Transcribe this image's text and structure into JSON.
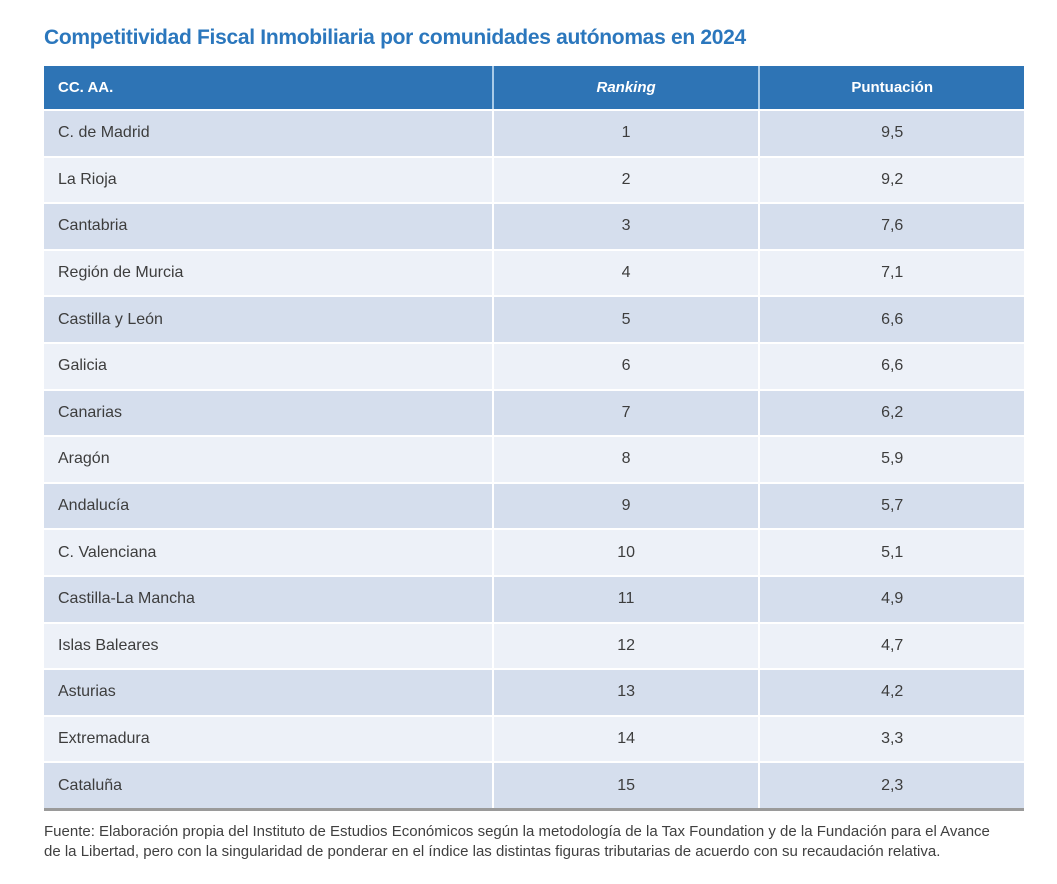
{
  "title": "Competitividad Fiscal Inmobiliaria por comunidades autónomas en 2024",
  "table": {
    "columns": [
      "CC. AA.",
      "Ranking",
      "Puntuación"
    ],
    "rows": [
      {
        "name": "C. de Madrid",
        "ranking": "1",
        "score": "9,5"
      },
      {
        "name": "La Rioja",
        "ranking": "2",
        "score": "9,2"
      },
      {
        "name": "Cantabria",
        "ranking": "3",
        "score": "7,6"
      },
      {
        "name": "Región de Murcia",
        "ranking": "4",
        "score": "7,1"
      },
      {
        "name": "Castilla y León",
        "ranking": "5",
        "score": "6,6"
      },
      {
        "name": "Galicia",
        "ranking": "6",
        "score": "6,6"
      },
      {
        "name": "Canarias",
        "ranking": "7",
        "score": "6,2"
      },
      {
        "name": "Aragón",
        "ranking": "8",
        "score": "5,9"
      },
      {
        "name": "Andalucía",
        "ranking": "9",
        "score": "5,7"
      },
      {
        "name": "C. Valenciana",
        "ranking": "10",
        "score": "5,1"
      },
      {
        "name": "Castilla-La Mancha",
        "ranking": "11",
        "score": "4,9"
      },
      {
        "name": "Islas Baleares",
        "ranking": "12",
        "score": "4,7"
      },
      {
        "name": "Asturias",
        "ranking": "13",
        "score": "4,2"
      },
      {
        "name": "Extremadura",
        "ranking": "14",
        "score": "3,3"
      },
      {
        "name": "Cataluña",
        "ranking": "15",
        "score": "2,3"
      }
    ]
  },
  "footnote": "Fuente: Elaboración propia del Instituto de Estudios Económicos según la metodología de la Tax Foundation y de la Fundación para el Avance de la Libertad, pero con la singularidad de ponderar en el índice las distintas figuras tributarias de acuerdo con su recaudación relativa.",
  "colors": {
    "title_blue": "#2b77bd",
    "header_blue": "#2e74b5",
    "row_dark": "#d5deed",
    "row_light": "#edf1f8",
    "body_text": "#3d3d3d",
    "bottom_border": "#9a9a9a"
  },
  "chart_data": {
    "type": "table",
    "title": "Competitividad Fiscal Inmobiliaria por comunidades autónomas en 2024",
    "columns": [
      "CC. AA.",
      "Ranking",
      "Puntuación"
    ],
    "categories": [
      "C. de Madrid",
      "La Rioja",
      "Cantabria",
      "Región de Murcia",
      "Castilla y León",
      "Galicia",
      "Canarias",
      "Aragón",
      "Andalucía",
      "C. Valenciana",
      "Castilla-La Mancha",
      "Islas Baleares",
      "Asturias",
      "Extremadura",
      "Cataluña"
    ],
    "series": [
      {
        "name": "Ranking",
        "values": [
          1,
          2,
          3,
          4,
          5,
          6,
          7,
          8,
          9,
          10,
          11,
          12,
          13,
          14,
          15
        ]
      },
      {
        "name": "Puntuación",
        "values": [
          9.5,
          9.2,
          7.6,
          7.1,
          6.6,
          6.6,
          6.2,
          5.9,
          5.7,
          5.1,
          4.9,
          4.7,
          4.2,
          3.3,
          2.3
        ]
      }
    ],
    "layout_hints": {
      "decimal_separator": ",",
      "row_striping": true,
      "source_note_below": true
    }
  }
}
